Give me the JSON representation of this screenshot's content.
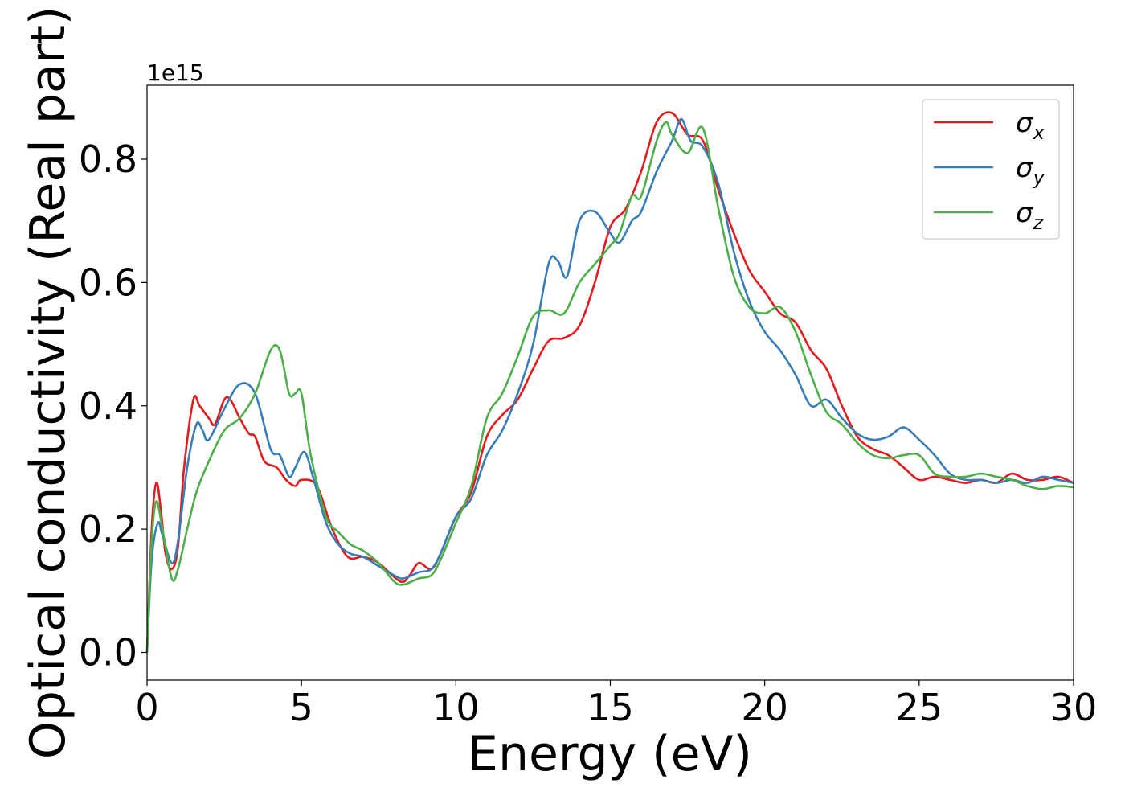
{
  "chart_data": {
    "type": "line",
    "xlabel": "Energy (eV)",
    "ylabel": "Optical conductivity (Real part)",
    "y_offset_text": "1e15",
    "xlim": [
      0,
      30
    ],
    "ylim": [
      -0.045,
      0.92
    ],
    "x_ticks": [
      0,
      5,
      10,
      15,
      20,
      25,
      30
    ],
    "y_ticks": [
      0.0,
      0.2,
      0.4,
      0.6,
      0.8
    ],
    "x_tick_labels": [
      "0",
      "5",
      "10",
      "15",
      "20",
      "25",
      "30"
    ],
    "y_tick_labels": [
      "0.0",
      "0.2",
      "0.4",
      "0.6",
      "0.8"
    ],
    "grid": false,
    "legend_position": "top-right",
    "series": [
      {
        "name": "σx",
        "symbol": "σ",
        "subscript": "x",
        "color": "#e41a1c",
        "points": [
          [
            0,
            0.0
          ],
          [
            0.15,
            0.2
          ],
          [
            0.3,
            0.275
          ],
          [
            0.45,
            0.23
          ],
          [
            0.6,
            0.16
          ],
          [
            0.8,
            0.135
          ],
          [
            1.0,
            0.17
          ],
          [
            1.2,
            0.3
          ],
          [
            1.5,
            0.41
          ],
          [
            1.7,
            0.4
          ],
          [
            2.0,
            0.38
          ],
          [
            2.2,
            0.37
          ],
          [
            2.5,
            0.41
          ],
          [
            2.7,
            0.41
          ],
          [
            3.0,
            0.38
          ],
          [
            3.3,
            0.355
          ],
          [
            3.5,
            0.35
          ],
          [
            3.8,
            0.31
          ],
          [
            4.2,
            0.3
          ],
          [
            4.5,
            0.28
          ],
          [
            4.8,
            0.27
          ],
          [
            5.0,
            0.28
          ],
          [
            5.5,
            0.27
          ],
          [
            6.0,
            0.2
          ],
          [
            6.5,
            0.155
          ],
          [
            7.0,
            0.155
          ],
          [
            7.5,
            0.145
          ],
          [
            8.2,
            0.115
          ],
          [
            8.5,
            0.125
          ],
          [
            8.8,
            0.145
          ],
          [
            9.2,
            0.135
          ],
          [
            9.5,
            0.16
          ],
          [
            10.0,
            0.22
          ],
          [
            10.5,
            0.26
          ],
          [
            11.0,
            0.35
          ],
          [
            11.5,
            0.385
          ],
          [
            12.0,
            0.41
          ],
          [
            12.5,
            0.46
          ],
          [
            13.0,
            0.505
          ],
          [
            13.5,
            0.51
          ],
          [
            14.0,
            0.53
          ],
          [
            14.5,
            0.6
          ],
          [
            15.0,
            0.69
          ],
          [
            15.5,
            0.72
          ],
          [
            16.0,
            0.78
          ],
          [
            16.5,
            0.86
          ],
          [
            17.0,
            0.875
          ],
          [
            17.5,
            0.84
          ],
          [
            18.0,
            0.83
          ],
          [
            18.5,
            0.75
          ],
          [
            19.0,
            0.68
          ],
          [
            19.5,
            0.62
          ],
          [
            20.0,
            0.585
          ],
          [
            20.5,
            0.55
          ],
          [
            21.0,
            0.535
          ],
          [
            21.5,
            0.49
          ],
          [
            22.0,
            0.46
          ],
          [
            22.5,
            0.4
          ],
          [
            23.0,
            0.35
          ],
          [
            23.5,
            0.33
          ],
          [
            24.0,
            0.32
          ],
          [
            24.5,
            0.3
          ],
          [
            25.0,
            0.28
          ],
          [
            25.5,
            0.285
          ],
          [
            26.0,
            0.28
          ],
          [
            26.5,
            0.275
          ],
          [
            27.0,
            0.28
          ],
          [
            27.5,
            0.275
          ],
          [
            28.0,
            0.29
          ],
          [
            28.5,
            0.28
          ],
          [
            29.0,
            0.28
          ],
          [
            29.5,
            0.285
          ],
          [
            30.0,
            0.275
          ]
        ]
      },
      {
        "name": "σy",
        "symbol": "σ",
        "subscript": "y",
        "color": "#377eb8",
        "points": [
          [
            0,
            0.0
          ],
          [
            0.15,
            0.15
          ],
          [
            0.35,
            0.21
          ],
          [
            0.5,
            0.19
          ],
          [
            0.8,
            0.145
          ],
          [
            1.0,
            0.18
          ],
          [
            1.3,
            0.3
          ],
          [
            1.6,
            0.37
          ],
          [
            1.8,
            0.36
          ],
          [
            2.0,
            0.345
          ],
          [
            2.5,
            0.395
          ],
          [
            3.0,
            0.435
          ],
          [
            3.5,
            0.42
          ],
          [
            4.0,
            0.33
          ],
          [
            4.3,
            0.32
          ],
          [
            4.6,
            0.285
          ],
          [
            4.8,
            0.3
          ],
          [
            5.1,
            0.325
          ],
          [
            5.4,
            0.28
          ],
          [
            5.8,
            0.21
          ],
          [
            6.2,
            0.175
          ],
          [
            6.6,
            0.16
          ],
          [
            7.0,
            0.155
          ],
          [
            7.5,
            0.14
          ],
          [
            8.0,
            0.125
          ],
          [
            8.3,
            0.12
          ],
          [
            8.8,
            0.13
          ],
          [
            9.2,
            0.135
          ],
          [
            9.5,
            0.16
          ],
          [
            10.0,
            0.22
          ],
          [
            10.5,
            0.25
          ],
          [
            11.0,
            0.32
          ],
          [
            11.5,
            0.36
          ],
          [
            12.0,
            0.42
          ],
          [
            12.5,
            0.5
          ],
          [
            13.0,
            0.63
          ],
          [
            13.3,
            0.635
          ],
          [
            13.6,
            0.61
          ],
          [
            14.0,
            0.7
          ],
          [
            14.5,
            0.715
          ],
          [
            15.0,
            0.68
          ],
          [
            15.3,
            0.665
          ],
          [
            15.7,
            0.7
          ],
          [
            16.0,
            0.715
          ],
          [
            16.5,
            0.78
          ],
          [
            17.0,
            0.83
          ],
          [
            17.3,
            0.865
          ],
          [
            17.6,
            0.83
          ],
          [
            18.0,
            0.82
          ],
          [
            18.5,
            0.76
          ],
          [
            19.0,
            0.65
          ],
          [
            19.5,
            0.57
          ],
          [
            20.0,
            0.52
          ],
          [
            20.5,
            0.49
          ],
          [
            21.0,
            0.45
          ],
          [
            21.5,
            0.4
          ],
          [
            22.0,
            0.41
          ],
          [
            22.5,
            0.38
          ],
          [
            23.0,
            0.355
          ],
          [
            23.5,
            0.345
          ],
          [
            24.0,
            0.35
          ],
          [
            24.5,
            0.365
          ],
          [
            25.0,
            0.345
          ],
          [
            25.5,
            0.32
          ],
          [
            26.0,
            0.29
          ],
          [
            26.5,
            0.28
          ],
          [
            27.0,
            0.28
          ],
          [
            27.5,
            0.275
          ],
          [
            28.0,
            0.28
          ],
          [
            28.5,
            0.275
          ],
          [
            29.0,
            0.285
          ],
          [
            29.5,
            0.28
          ],
          [
            30.0,
            0.275
          ]
        ]
      },
      {
        "name": "σz",
        "symbol": "σ",
        "subscript": "z",
        "color": "#4daf4a",
        "points": [
          [
            0,
            0.0
          ],
          [
            0.15,
            0.18
          ],
          [
            0.3,
            0.245
          ],
          [
            0.5,
            0.2
          ],
          [
            0.8,
            0.12
          ],
          [
            1.0,
            0.135
          ],
          [
            1.3,
            0.2
          ],
          [
            1.6,
            0.26
          ],
          [
            2.0,
            0.31
          ],
          [
            2.5,
            0.36
          ],
          [
            3.0,
            0.38
          ],
          [
            3.5,
            0.42
          ],
          [
            4.0,
            0.49
          ],
          [
            4.3,
            0.49
          ],
          [
            4.6,
            0.42
          ],
          [
            4.8,
            0.42
          ],
          [
            5.0,
            0.42
          ],
          [
            5.3,
            0.32
          ],
          [
            5.8,
            0.22
          ],
          [
            6.2,
            0.195
          ],
          [
            6.6,
            0.175
          ],
          [
            7.0,
            0.165
          ],
          [
            7.5,
            0.145
          ],
          [
            8.0,
            0.115
          ],
          [
            8.3,
            0.11
          ],
          [
            8.8,
            0.12
          ],
          [
            9.2,
            0.125
          ],
          [
            9.5,
            0.15
          ],
          [
            10.0,
            0.21
          ],
          [
            10.5,
            0.27
          ],
          [
            11.0,
            0.38
          ],
          [
            11.5,
            0.42
          ],
          [
            12.0,
            0.48
          ],
          [
            12.5,
            0.545
          ],
          [
            13.0,
            0.555
          ],
          [
            13.5,
            0.55
          ],
          [
            14.0,
            0.6
          ],
          [
            14.5,
            0.63
          ],
          [
            15.0,
            0.66
          ],
          [
            15.3,
            0.68
          ],
          [
            15.7,
            0.74
          ],
          [
            16.0,
            0.74
          ],
          [
            16.5,
            0.83
          ],
          [
            16.8,
            0.86
          ],
          [
            17.0,
            0.84
          ],
          [
            17.5,
            0.81
          ],
          [
            18.0,
            0.85
          ],
          [
            18.5,
            0.72
          ],
          [
            19.0,
            0.61
          ],
          [
            19.5,
            0.56
          ],
          [
            20.0,
            0.55
          ],
          [
            20.5,
            0.56
          ],
          [
            21.0,
            0.52
          ],
          [
            21.5,
            0.45
          ],
          [
            22.0,
            0.39
          ],
          [
            22.5,
            0.37
          ],
          [
            23.0,
            0.34
          ],
          [
            23.5,
            0.32
          ],
          [
            24.0,
            0.315
          ],
          [
            24.5,
            0.32
          ],
          [
            25.0,
            0.32
          ],
          [
            25.5,
            0.29
          ],
          [
            26.0,
            0.285
          ],
          [
            26.5,
            0.285
          ],
          [
            27.0,
            0.29
          ],
          [
            27.5,
            0.285
          ],
          [
            28.0,
            0.28
          ],
          [
            28.5,
            0.27
          ],
          [
            29.0,
            0.265
          ],
          [
            29.5,
            0.27
          ],
          [
            30.0,
            0.268
          ]
        ]
      }
    ]
  }
}
